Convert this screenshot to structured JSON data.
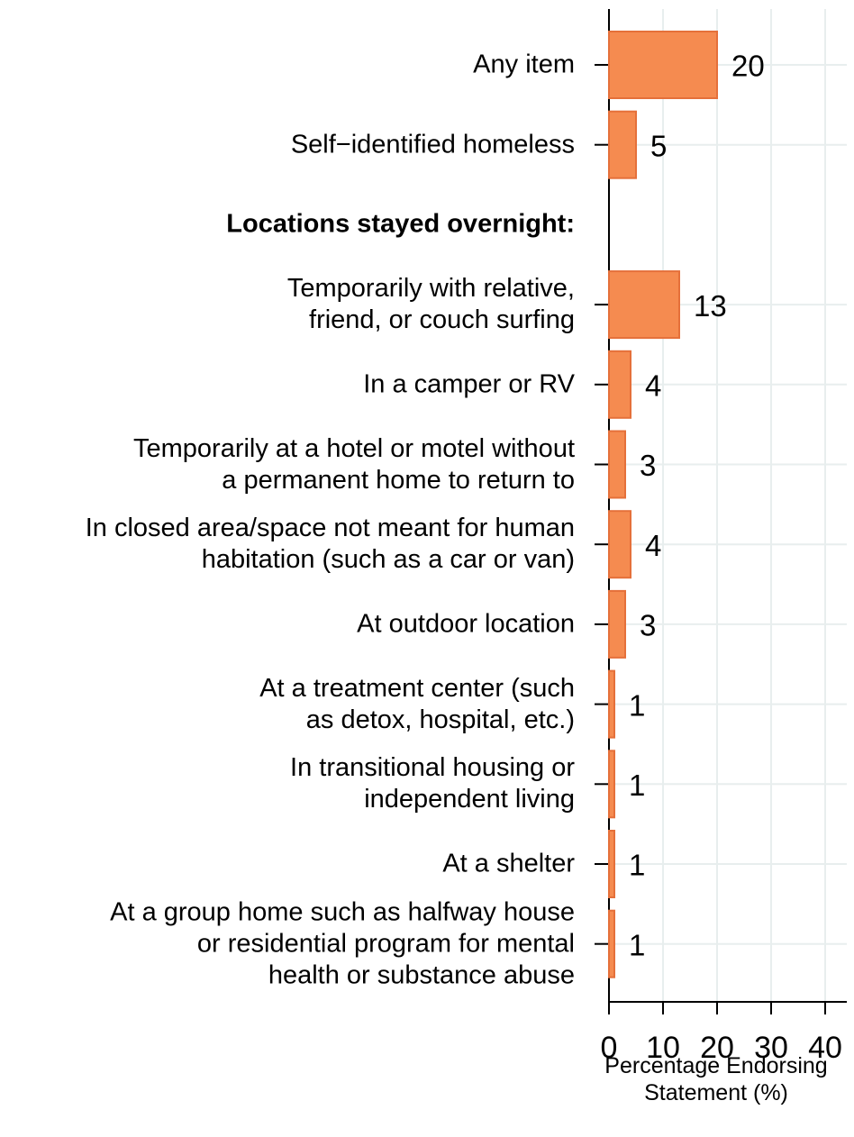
{
  "chart_data": {
    "type": "hbar",
    "categories": [
      "Any item",
      "Self−identified homeless",
      "Locations stayed overnight:",
      "Temporarily with relative,\nfriend, or couch surfing",
      "In a camper or RV",
      "Temporarily at a hotel or motel without\na permanent home to return to",
      "In closed area/space not meant for human\nhabitation (such as a car or van)",
      "At outdoor location",
      "At a treatment center (such\nas detox, hospital, etc.)",
      "In transitional housing or\nindependent living",
      "At a shelter",
      "At a group home such as halfway house\nor residential program for mental\nhealth or substance abuse"
    ],
    "values": [
      20,
      5,
      null,
      13,
      4,
      3,
      4,
      3,
      1,
      1,
      1,
      1
    ],
    "color": "#f58b50",
    "xlabel": "Percentage Endorsing\nStatement (%)",
    "xlim": [
      0,
      44
    ],
    "xticks": [
      0,
      10,
      20,
      30,
      40
    ],
    "grid": true
  }
}
